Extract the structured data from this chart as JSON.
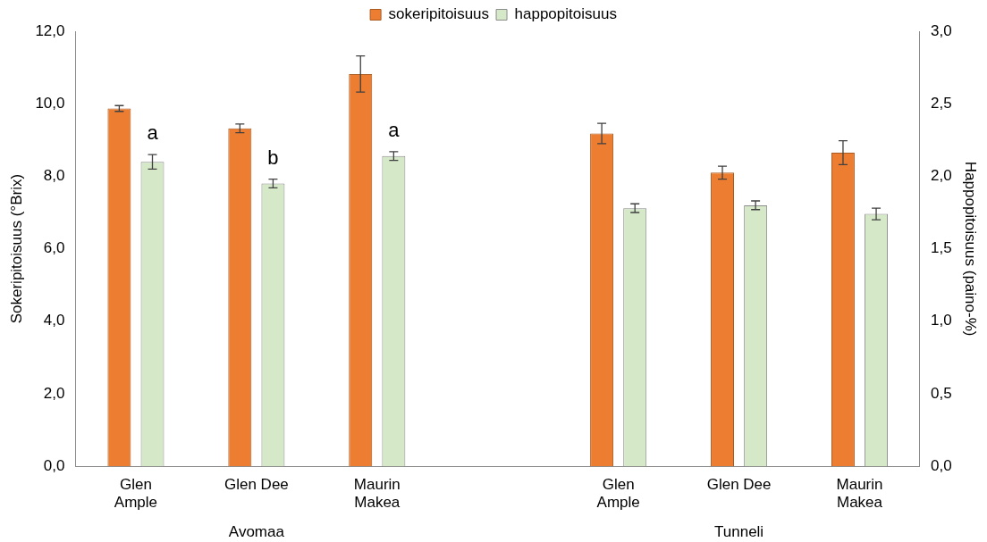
{
  "chart_data": {
    "type": "bar",
    "ylabel": "Sokeripitoisuus (°Brix)",
    "y2label": "Happopitoisuus (paino-%)",
    "categories": [
      "Glen Ample",
      "Glen Dee",
      "Maurin Makea",
      null,
      "Glen Ample",
      "Glen Dee",
      "Maurin Makea"
    ],
    "series": [
      {
        "name": "sokeripitoisuus",
        "color": "#ed7d31",
        "values": [
          9.87,
          9.32,
          10.82,
          null,
          9.18,
          8.1,
          8.65
        ],
        "errors": [
          0.08,
          0.12,
          0.5,
          null,
          0.28,
          0.18,
          0.33
        ]
      },
      {
        "name": "happopitoisuus",
        "color": "#d5e8c8",
        "axis": "y2",
        "values": [
          2.1,
          1.95,
          2.14,
          null,
          1.78,
          1.8,
          1.74
        ],
        "errors": [
          0.05,
          0.03,
          0.03,
          null,
          0.03,
          0.03,
          0.04
        ]
      }
    ],
    "ylim": [
      0,
      12
    ],
    "yticks": [
      {
        "value": 0,
        "label": "0,0"
      },
      {
        "value": 2,
        "label": "2,0"
      },
      {
        "value": 4,
        "label": "4,0"
      },
      {
        "value": 6,
        "label": "6,0"
      },
      {
        "value": 8,
        "label": "8,0"
      },
      {
        "value": 10,
        "label": "10,0"
      },
      {
        "value": 12,
        "label": "12,0"
      }
    ],
    "y2lim": [
      0,
      3
    ],
    "y2ticks": [
      {
        "value": 0,
        "label": "0,0"
      },
      {
        "value": 0.5,
        "label": "0,5"
      },
      {
        "value": 1,
        "label": "1,0"
      },
      {
        "value": 1.5,
        "label": "1,5"
      },
      {
        "value": 2,
        "label": "2,0"
      },
      {
        "value": 2.5,
        "label": "2,5"
      },
      {
        "value": 3,
        "label": "3,0"
      }
    ],
    "annotations": [
      "a",
      "b",
      "a",
      "Avomaa",
      "Tunneli"
    ],
    "legend": "top",
    "grid": false
  }
}
